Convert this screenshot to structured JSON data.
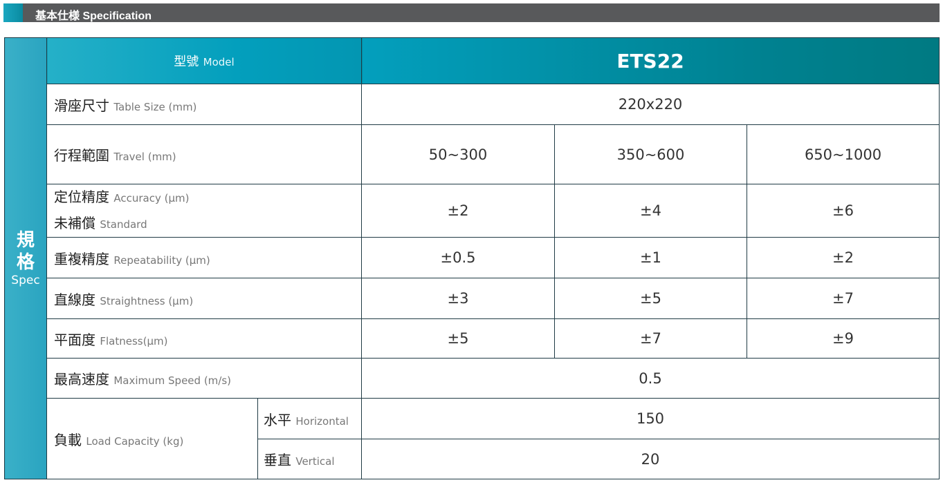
{
  "section_title": "基本仕様 Specification",
  "spec_label": {
    "zh1": "規",
    "zh2": "格",
    "en": "Spec"
  },
  "model": {
    "zh": "型號",
    "en": "Model",
    "value": "ETS22"
  },
  "rows": {
    "table_size": {
      "zh": "滑座尺寸",
      "en": "Table Size (mm)",
      "value": "220x220"
    },
    "travel": {
      "zh": "行程範圍",
      "en": "Travel (mm)",
      "values": [
        "50~300",
        "350~600",
        "650~1000"
      ]
    },
    "accuracy": {
      "zh": "定位精度",
      "en": "Accuracy (μm)",
      "zh2": "未補償",
      "en2": "Standard",
      "values": [
        "±2",
        "±4",
        "±6"
      ]
    },
    "repeatability": {
      "zh": "重複精度",
      "en": "Repeatability (μm)",
      "values": [
        "±0.5",
        "±1",
        "±2"
      ]
    },
    "straightness": {
      "zh": "直線度",
      "en": "Straightness (μm)",
      "values": [
        "±3",
        "±5",
        "±7"
      ]
    },
    "flatness": {
      "zh": "平面度",
      "en": "Flatness(μm)",
      "values": [
        "±5",
        "±7",
        "±9"
      ]
    },
    "max_speed": {
      "zh": "最高速度",
      "en": "Maximum Speed (m/s)",
      "value": "0.5"
    },
    "load": {
      "zh": "負載",
      "en": "Load Capacity (kg)",
      "horizontal": {
        "zh": "水平",
        "en": "Horizontal",
        "value": "150"
      },
      "vertical": {
        "zh": "垂直",
        "en": "Vertical",
        "value": "20"
      }
    }
  }
}
